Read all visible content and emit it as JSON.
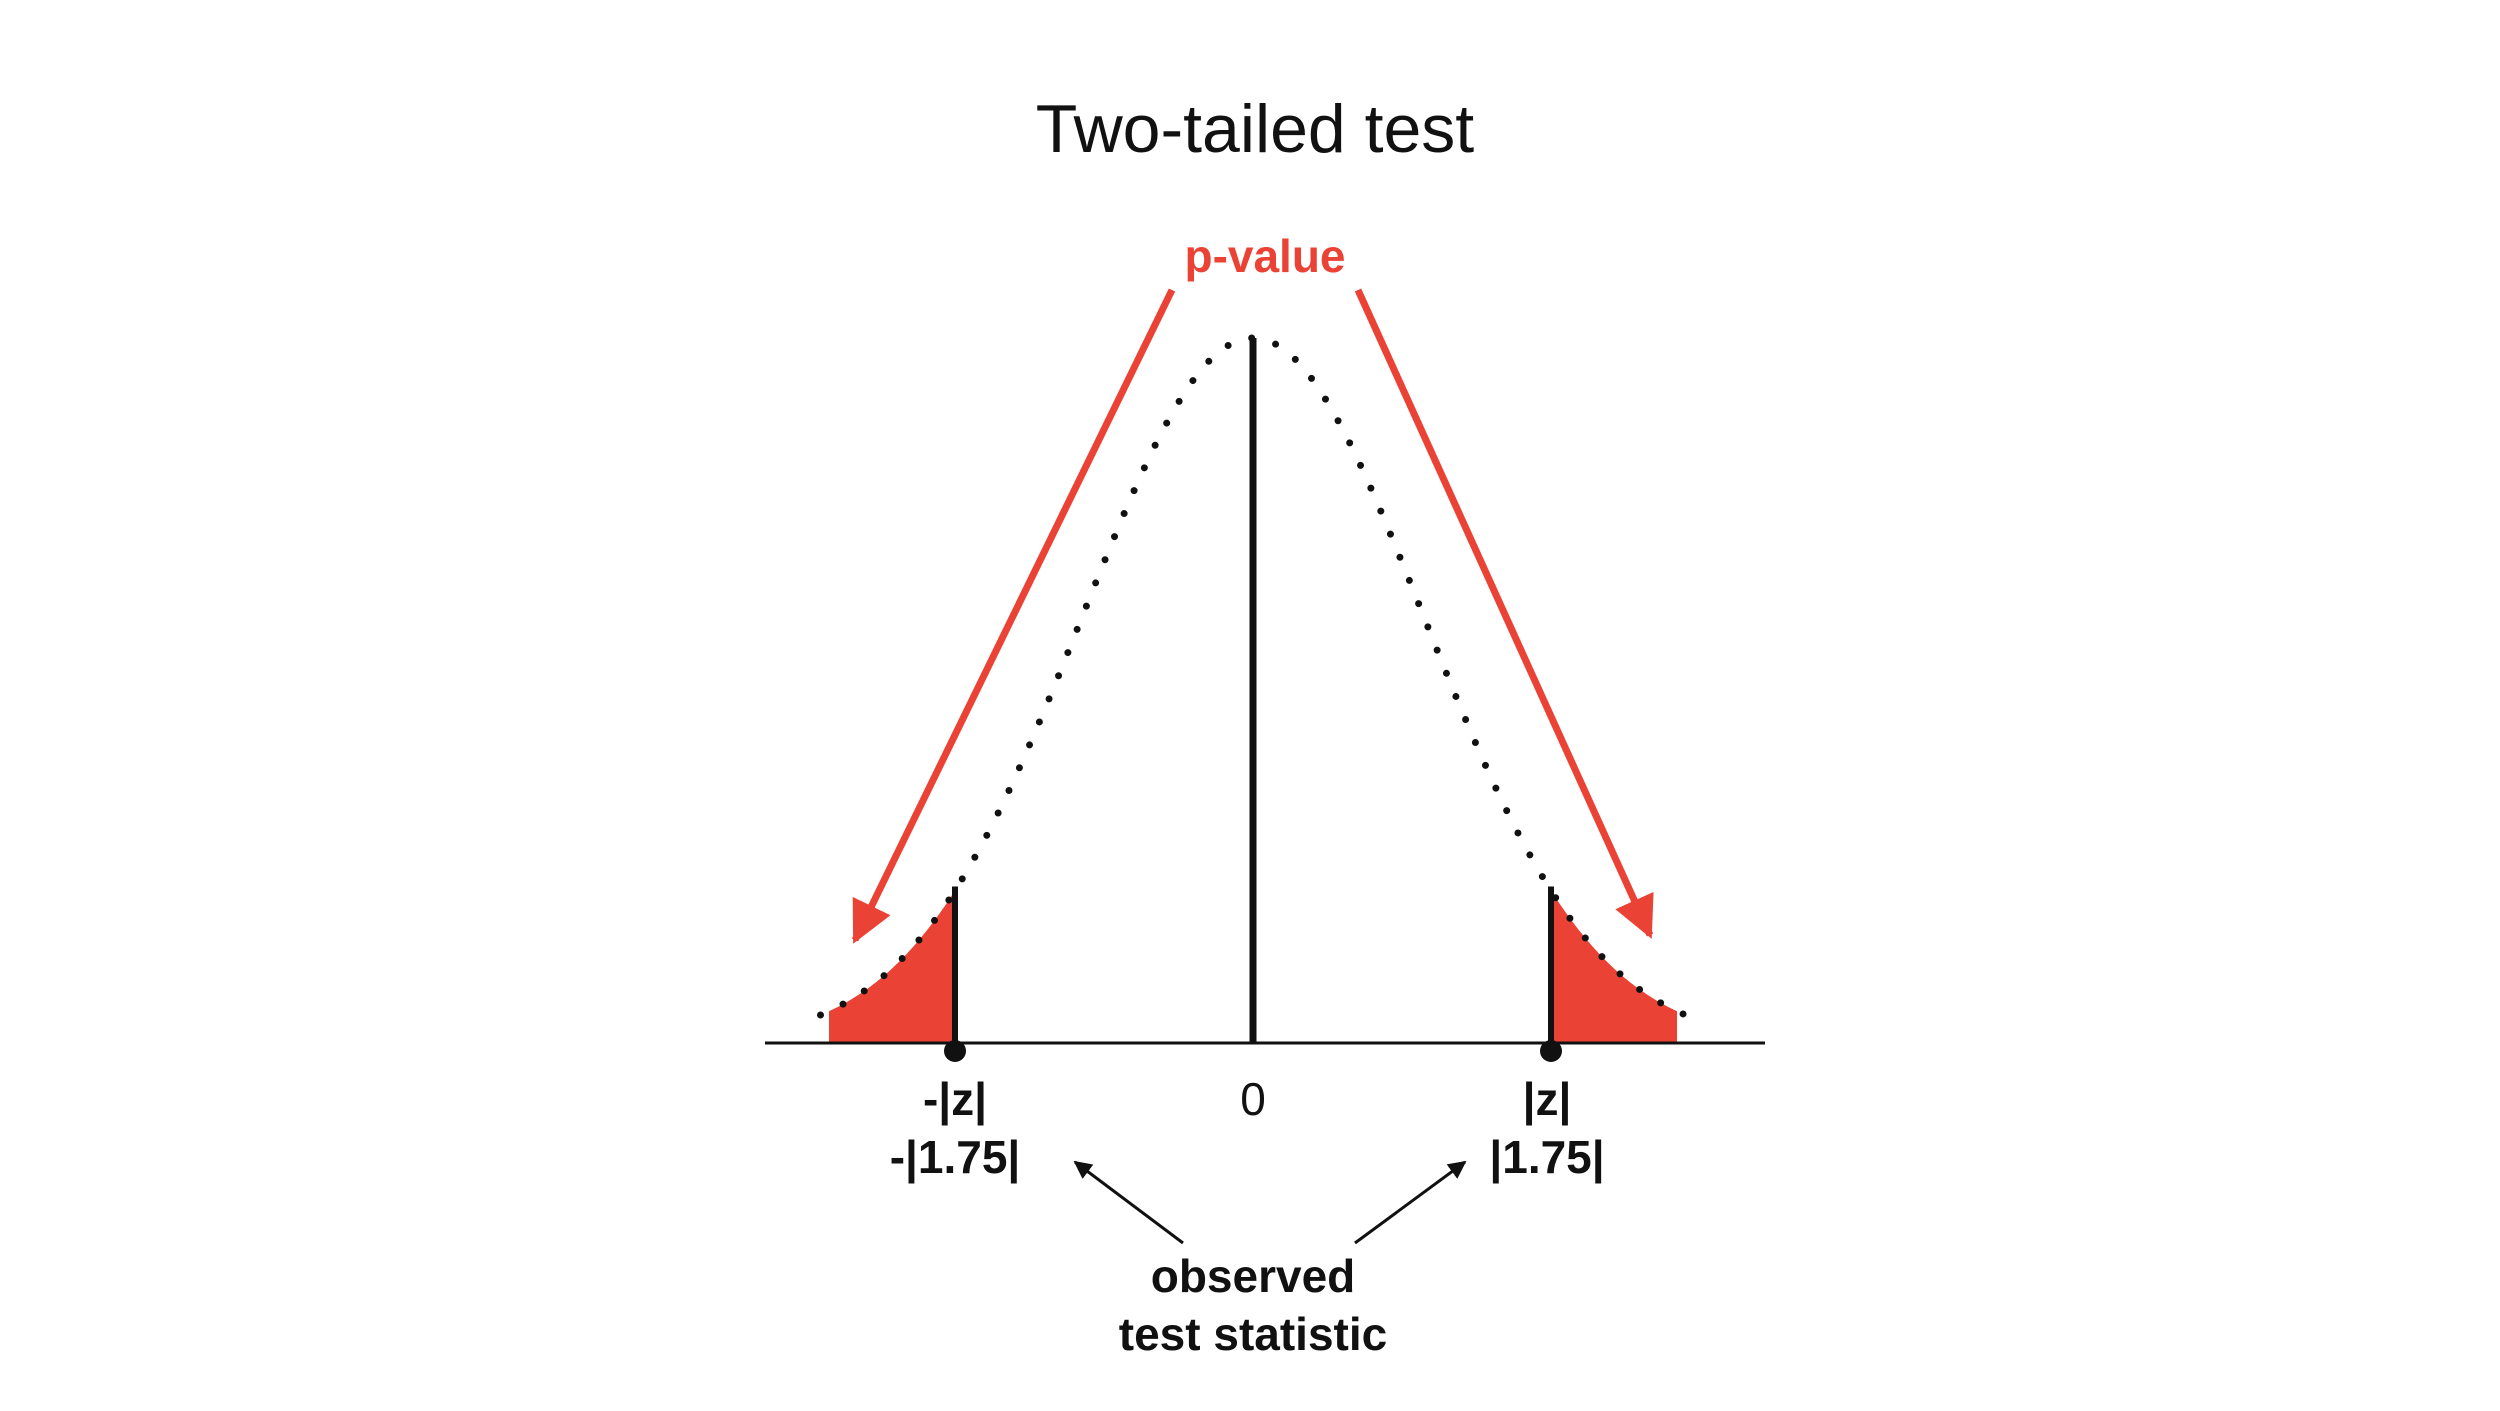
{
  "title": "Two-tailed test",
  "pvalue_label": "p-value",
  "center_label": "0",
  "left_tick": {
    "symbol": "-|z|",
    "value": "-|1.75|"
  },
  "right_tick": {
    "symbol": "|z|",
    "value": "|1.75|"
  },
  "caption": {
    "line1": "observed",
    "line2": "test statistic"
  },
  "colors": {
    "shade": "#EA4335",
    "arrow": "#EA4335",
    "curve": "#111111",
    "axis": "#111111"
  },
  "chart_data": {
    "type": "area",
    "distribution": "standard normal",
    "critical_value": 1.75,
    "shaded_regions": [
      "left tail below -1.75",
      "right tail above 1.75"
    ],
    "curve_style": "dotted"
  }
}
